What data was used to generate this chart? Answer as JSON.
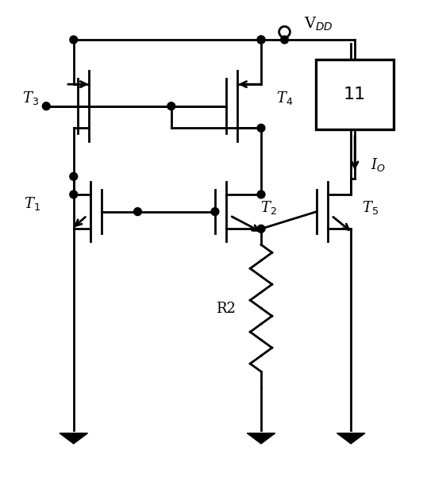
{
  "fig_width": 5.33,
  "fig_height": 6.11,
  "dpi": 100,
  "bg_color": "white",
  "line_color": "black",
  "lw": 2.0,
  "vdd_label": "V$_{DD}$",
  "io_label": "I$_O$",
  "r2_label": "R2",
  "box_label": "11",
  "t1_label": "T$_1$",
  "t2_label": "T$_2$",
  "t3_label": "T$_3$",
  "t4_label": "T$_4$",
  "t5_label": "T$_5$",
  "font_size": 13
}
